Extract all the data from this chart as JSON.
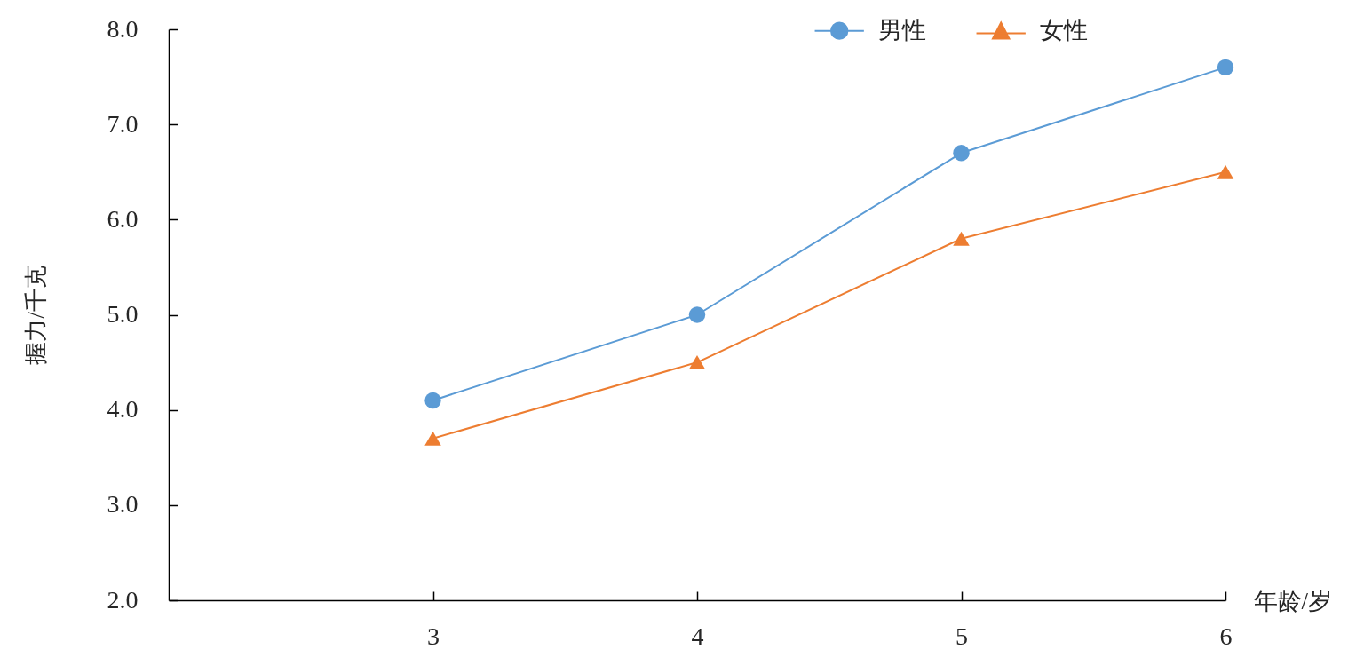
{
  "chart_data": {
    "type": "line",
    "xlabel": "年龄/岁",
    "ylabel": "握力/千克",
    "x": [
      3,
      4,
      5,
      6
    ],
    "xlim": [
      2,
      6
    ],
    "xticks": [
      3,
      4,
      5,
      6
    ],
    "ylim": [
      2,
      8
    ],
    "yticks": [
      {
        "value": 2,
        "label": "2.0"
      },
      {
        "value": 3,
        "label": "3.0"
      },
      {
        "value": 4,
        "label": "4.0"
      },
      {
        "value": 5,
        "label": "5.0"
      },
      {
        "value": 6,
        "label": "6.0"
      },
      {
        "value": 7,
        "label": "7.0"
      },
      {
        "value": 8,
        "label": "8.0"
      }
    ],
    "series": [
      {
        "name": "男性",
        "color": "#5b9bd5",
        "marker": "circle",
        "values": [
          4.1,
          5.0,
          6.7,
          7.6
        ]
      },
      {
        "name": "女性",
        "color": "#ed7d31",
        "marker": "triangle",
        "values": [
          3.7,
          4.5,
          5.8,
          6.5
        ]
      }
    ],
    "legend": "top right"
  }
}
